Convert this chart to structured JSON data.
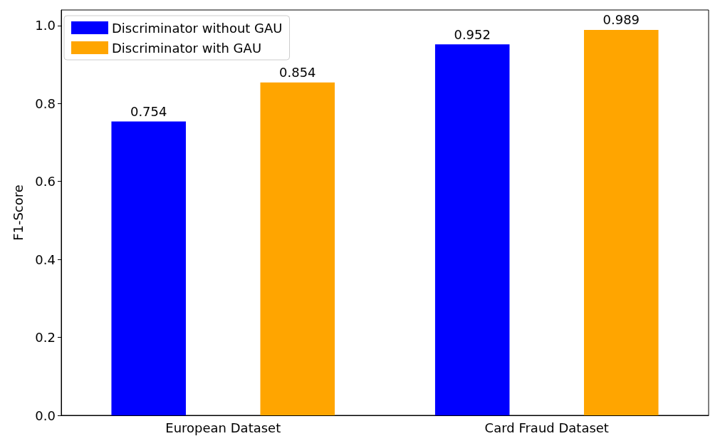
{
  "chart_data": {
    "type": "bar",
    "ylabel": "F1-Score",
    "categories": [
      "European Dataset",
      "Card Fraud Dataset"
    ],
    "series": [
      {
        "name": "Discriminator without GAU",
        "color": "#0000ff",
        "values": [
          0.754,
          0.952
        ]
      },
      {
        "name": "Discriminator with GAU",
        "color": "#ffa500",
        "values": [
          0.854,
          0.989
        ]
      }
    ],
    "ylim": [
      0,
      1.04
    ],
    "yticks": [
      {
        "value": 0,
        "label": "0.0"
      },
      0.2,
      0.4,
      0.6,
      0.8,
      {
        "value": 1,
        "label": "1.0"
      }
    ],
    "data_labels": true,
    "legend": "top left",
    "grid": false
  }
}
